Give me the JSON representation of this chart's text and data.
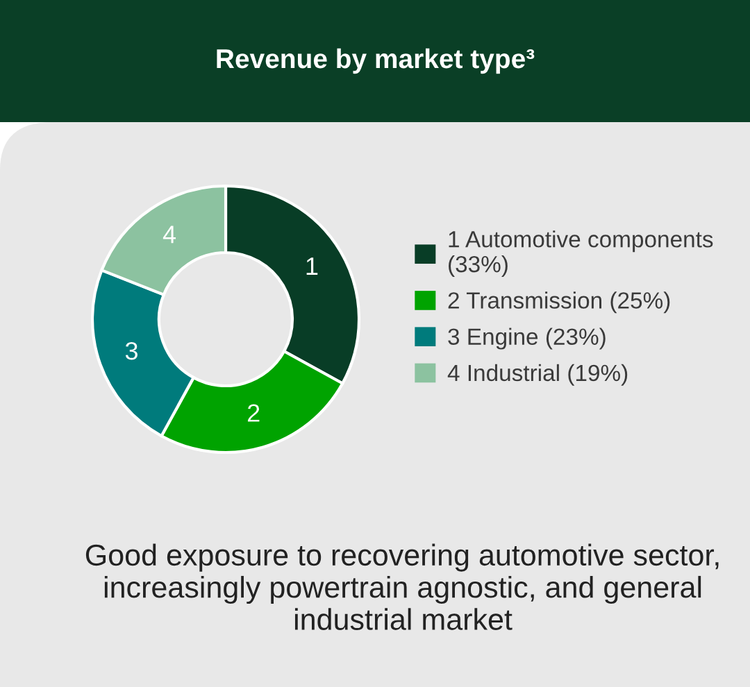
{
  "chart_data": {
    "type": "donut",
    "title": "Revenue by market type³",
    "categories": [
      "1 Automotive components (33%)",
      "2 Transmission (25%)",
      "3 Engine (23%)",
      "4 Industrial (19%)"
    ],
    "values": [
      33,
      25,
      23,
      19
    ],
    "colors": [
      "#083d26",
      "#00a300",
      "#007b7c",
      "#8cc2a0"
    ],
    "legend": "right",
    "annotations": [
      {
        "text": "1",
        "x": "1 Automotive components (33%)"
      },
      {
        "text": "2",
        "x": "2 Transmission (25%)"
      },
      {
        "text": "3",
        "x": "3 Engine (23%)"
      },
      {
        "text": "4",
        "x": "4 Industrial (19%)"
      },
      "Good exposure to recovering automotive sector, increasingly powertrain agnostic, and general industrial market"
    ]
  }
}
